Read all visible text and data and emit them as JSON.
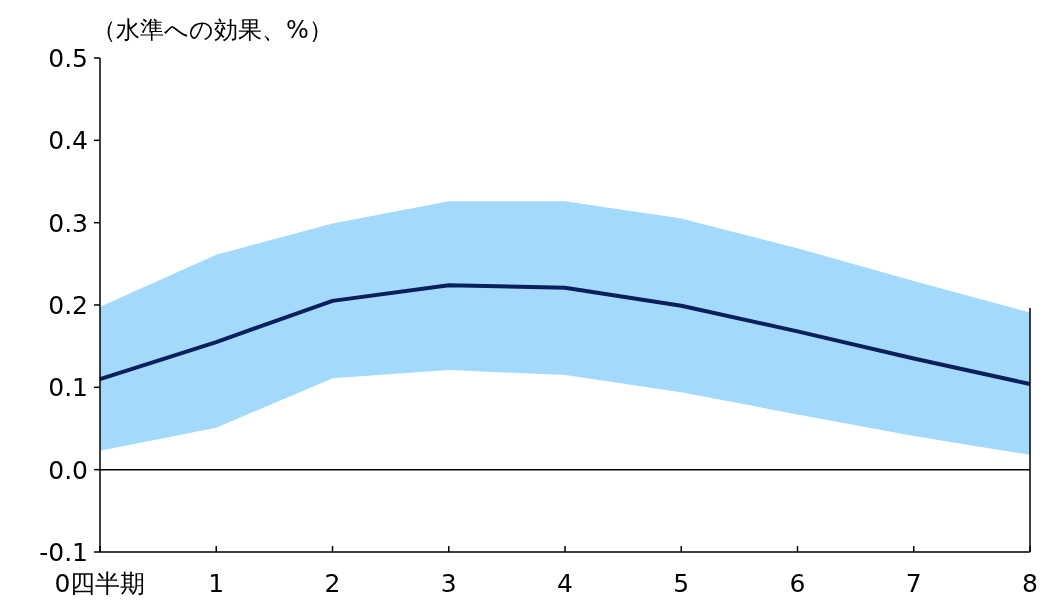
{
  "chart_data": {
    "type": "line",
    "ylabel": "（水準への効果、%）",
    "x": [
      0,
      1,
      2,
      3,
      4,
      5,
      6,
      7,
      8
    ],
    "series": [
      {
        "color": "#0b1f5c",
        "values": [
          0.11,
          0.155,
          0.205,
          0.224,
          0.221,
          0.199,
          0.168,
          0.135,
          0.104
        ],
        "lower": [
          0.023,
          0.051,
          0.111,
          0.121,
          0.115,
          0.094,
          0.067,
          0.041,
          0.018
        ],
        "upper": [
          0.198,
          0.261,
          0.299,
          0.326,
          0.326,
          0.305,
          0.269,
          0.229,
          0.191
        ]
      }
    ],
    "xlim": [
      0,
      8
    ],
    "xticks": [
      {
        "value": 0,
        "label": "0四半期"
      },
      1,
      2,
      3,
      4,
      5,
      6,
      7,
      8
    ],
    "ylim": [
      -0.1,
      0.5
    ],
    "yticks": [
      {
        "value": -0.1,
        "label": "-0.1"
      },
      {
        "value": 0,
        "label": "0.0"
      },
      {
        "value": 0.1,
        "label": "0.1"
      },
      {
        "value": 0.2,
        "label": "0.2"
      },
      {
        "value": 0.3,
        "label": "0.3"
      },
      {
        "value": 0.4,
        "label": "0.4"
      },
      {
        "value": 0.5,
        "label": "0.5"
      }
    ],
    "ref_lines": [
      {
        "axis": "y",
        "value": 0,
        "color": "#000000"
      }
    ],
    "grid": false
  }
}
